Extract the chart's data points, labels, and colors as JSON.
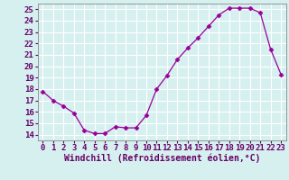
{
  "x": [
    0,
    1,
    2,
    3,
    4,
    5,
    6,
    7,
    8,
    9,
    10,
    11,
    12,
    13,
    14,
    15,
    16,
    17,
    18,
    19,
    20,
    21,
    22,
    23
  ],
  "y": [
    17.8,
    17.0,
    16.5,
    15.9,
    14.4,
    14.1,
    14.1,
    14.7,
    14.6,
    14.6,
    15.7,
    18.0,
    19.2,
    20.6,
    21.6,
    22.5,
    23.5,
    24.5,
    25.1,
    25.1,
    25.1,
    24.7,
    21.5,
    19.3
  ],
  "line_color": "#990099",
  "marker": "D",
  "marker_size": 2.5,
  "xlabel": "Windchill (Refroidissement éolien,°C)",
  "xlim": [
    -0.5,
    23.5
  ],
  "ylim": [
    13.5,
    25.5
  ],
  "yticks": [
    14,
    15,
    16,
    17,
    18,
    19,
    20,
    21,
    22,
    23,
    24,
    25
  ],
  "xticks": [
    0,
    1,
    2,
    3,
    4,
    5,
    6,
    7,
    8,
    9,
    10,
    11,
    12,
    13,
    14,
    15,
    16,
    17,
    18,
    19,
    20,
    21,
    22,
    23
  ],
  "bg_color": "#d6f0f0",
  "grid_color": "#b0d8d8",
  "spine_color": "#888888",
  "tick_label_color": "#660066",
  "xlabel_color": "#660066",
  "xlabel_fontsize": 7.0,
  "tick_fontsize": 6.5
}
